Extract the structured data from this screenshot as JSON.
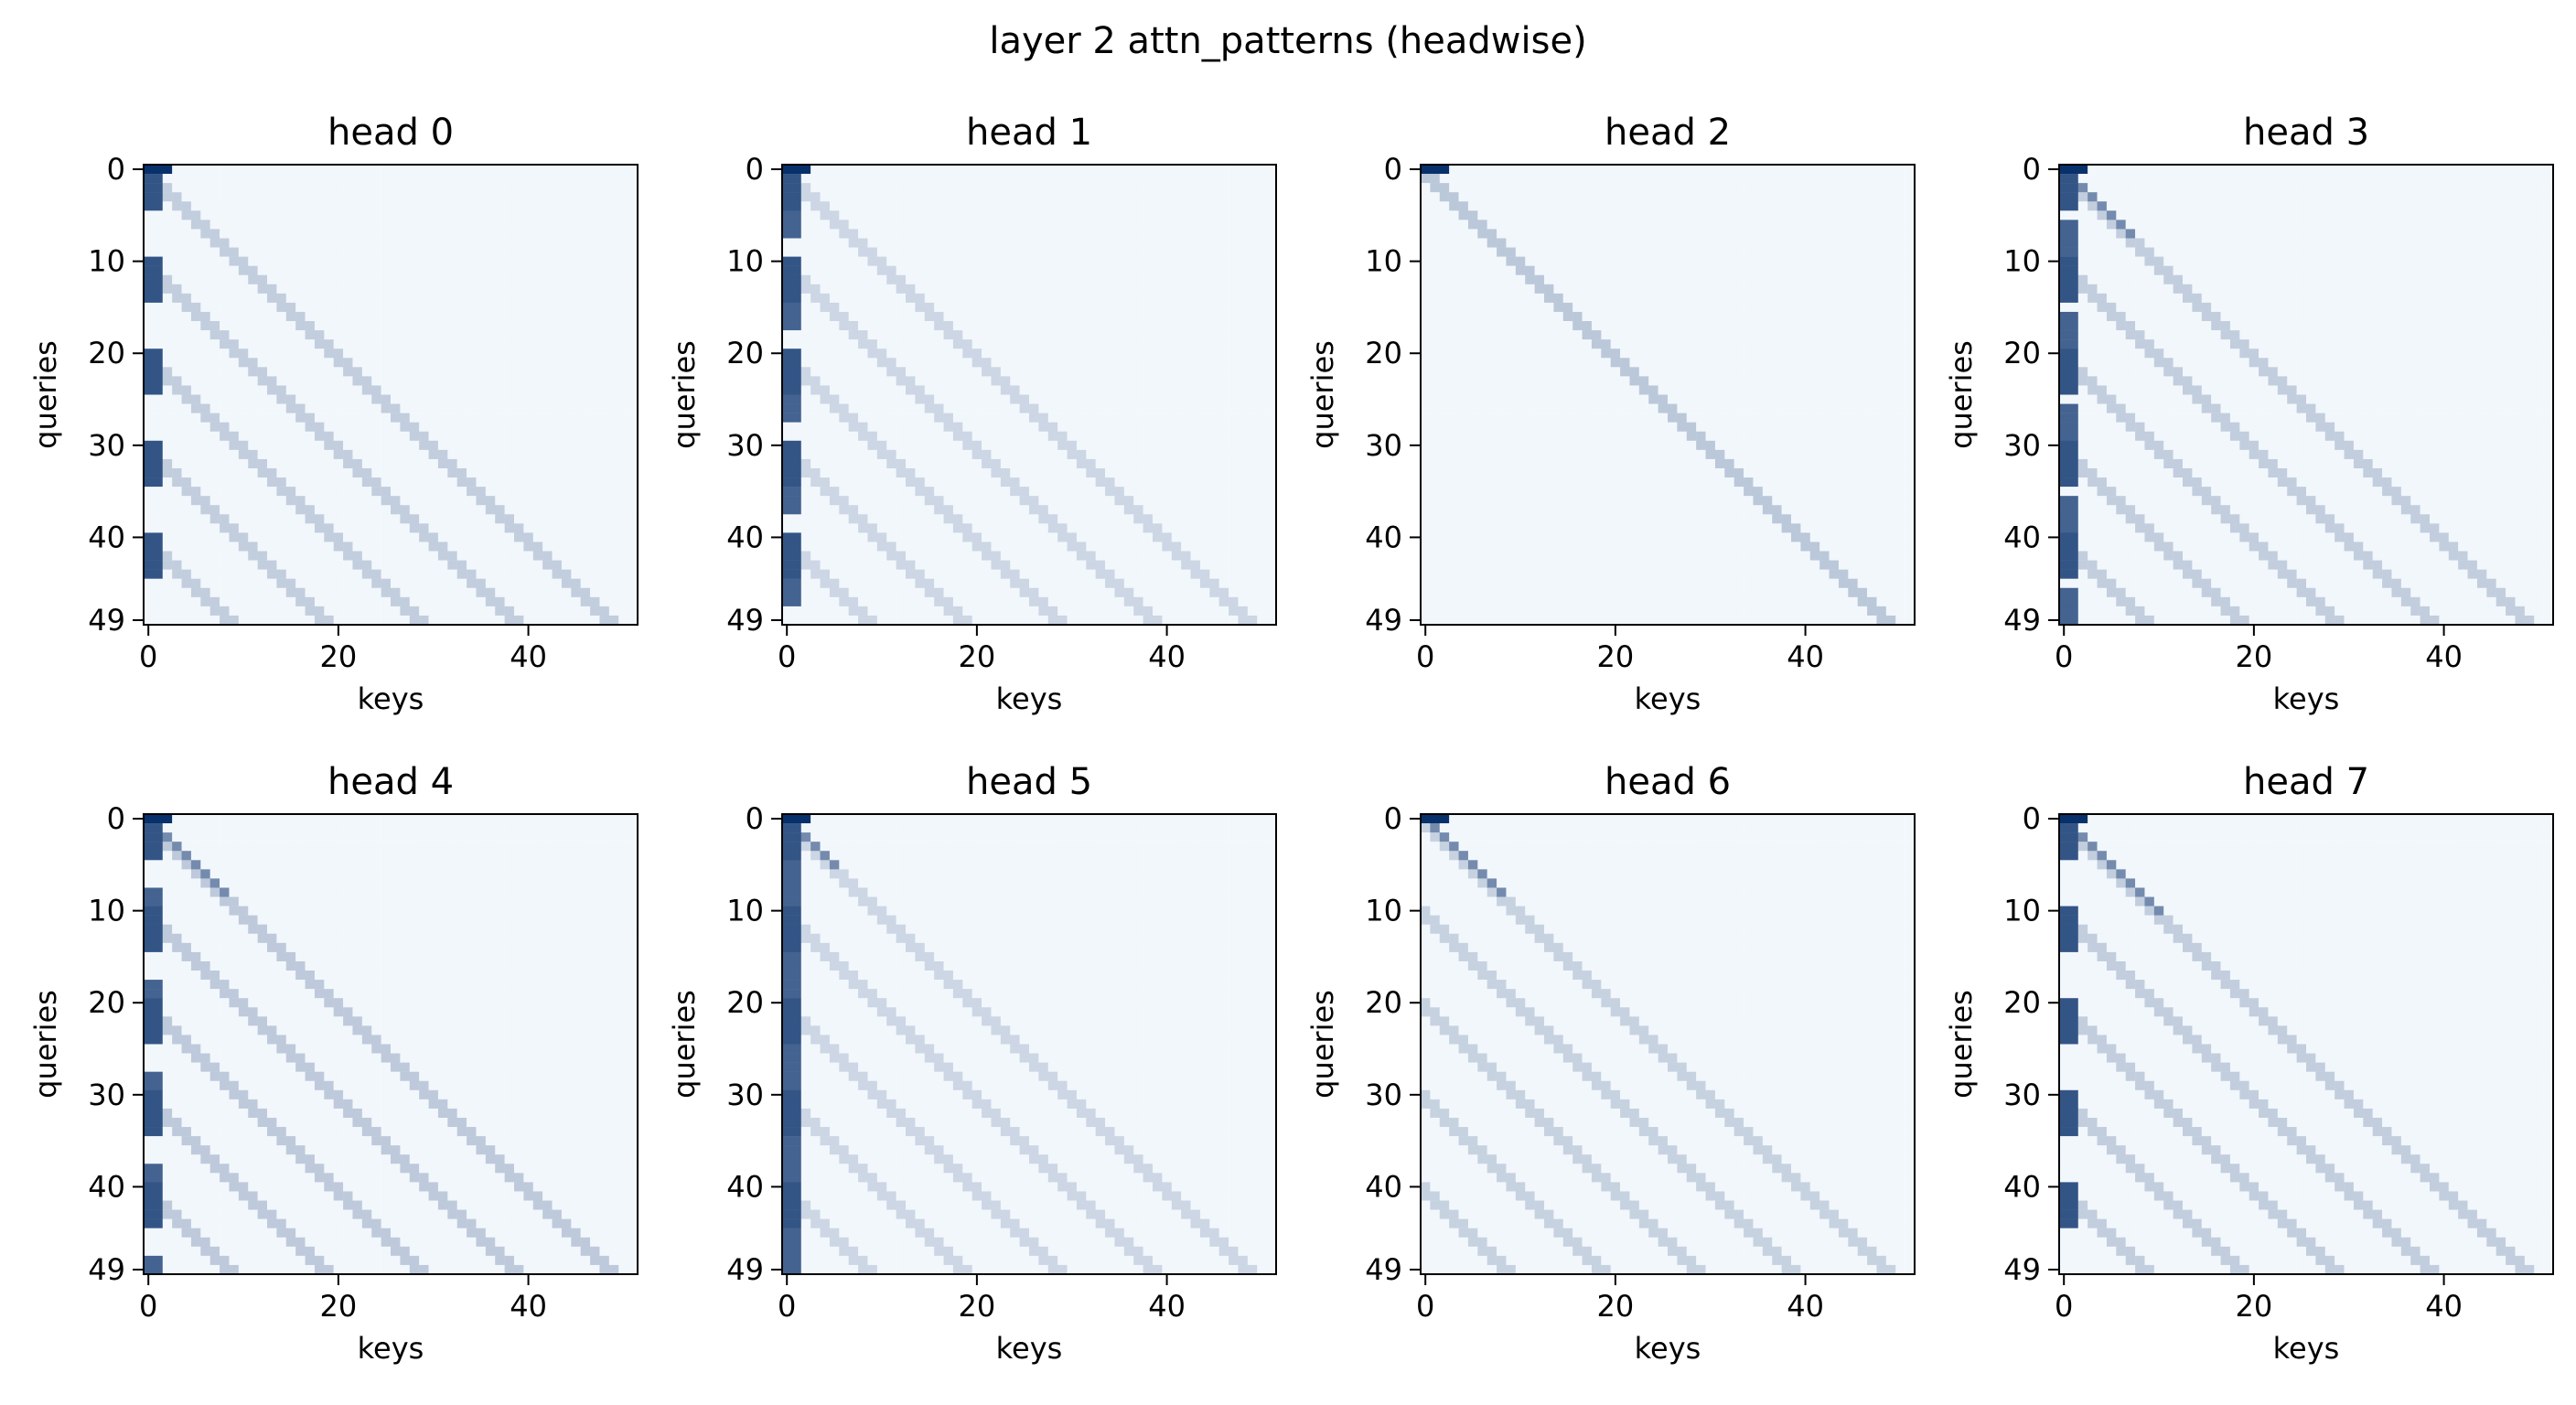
{
  "figure": {
    "title": "layer 2 attn_patterns (headwise)"
  },
  "colormap": {
    "name": "Blues",
    "light": "#f7fbff",
    "dark": "#08306b"
  },
  "chart_data": [
    {
      "type": "heatmap",
      "title": "head 0",
      "xlabel": "keys",
      "ylabel": "queries",
      "x_ticks": [
        0,
        20,
        40
      ],
      "y_ticks": [
        0,
        10,
        20,
        30,
        40,
        49
      ],
      "xlim": [
        -0.5,
        51.5
      ],
      "ylim": [
        49.5,
        -0.5
      ],
      "n_queries": 50,
      "n_keys": 52,
      "pattern": {
        "column_blocks": {
          "period": 10,
          "start": 0,
          "length": 5,
          "width": 2
        },
        "diag_offsets": [
          0,
          10,
          20,
          30,
          40
        ],
        "diag_strength": 0.22,
        "top_row_strength": 1.0
      }
    },
    {
      "type": "heatmap",
      "title": "head 1",
      "xlabel": "keys",
      "ylabel": "queries",
      "x_ticks": [
        0,
        20,
        40
      ],
      "y_ticks": [
        0,
        10,
        20,
        30,
        40,
        49
      ],
      "xlim": [
        -0.5,
        51.5
      ],
      "ylim": [
        49.5,
        -0.5
      ],
      "n_queries": 50,
      "n_keys": 52,
      "pattern": {
        "column_blocks": {
          "period": 10,
          "start": 2,
          "length": 6,
          "width": 2
        },
        "diag_offsets": [
          0,
          10,
          20,
          30,
          40
        ],
        "diag_strength": 0.18,
        "top_row_strength": 1.0
      }
    },
    {
      "type": "heatmap",
      "title": "head 2",
      "xlabel": "keys",
      "ylabel": "queries",
      "x_ticks": [
        0,
        20,
        40
      ],
      "y_ticks": [
        0,
        10,
        20,
        30,
        40,
        49
      ],
      "xlim": [
        -0.5,
        51.5
      ],
      "ylim": [
        49.5,
        -0.5
      ],
      "n_queries": 50,
      "n_keys": 52,
      "pattern": {
        "column_blocks": null,
        "diag_offsets": [
          0
        ],
        "diag_strength": 0.25,
        "top_row_strength": 1.0
      }
    },
    {
      "type": "heatmap",
      "title": "head 3",
      "xlabel": "keys",
      "ylabel": "queries",
      "x_ticks": [
        0,
        20,
        40
      ],
      "y_ticks": [
        0,
        10,
        20,
        30,
        40,
        49
      ],
      "xlim": [
        -0.5,
        51.5
      ],
      "ylim": [
        49.5,
        -0.5
      ],
      "n_queries": 50,
      "n_keys": 52,
      "pattern": {
        "column_blocks": {
          "period": 10,
          "start": 6,
          "length": 4,
          "width": 2
        },
        "diag_offsets": [
          0,
          10,
          20,
          30,
          40
        ],
        "diag_strength": 0.22,
        "top_row_strength": 1.0,
        "early_diag": 7
      }
    },
    {
      "type": "heatmap",
      "title": "head 4",
      "xlabel": "keys",
      "ylabel": "queries",
      "x_ticks": [
        0,
        20,
        40
      ],
      "y_ticks": [
        0,
        10,
        20,
        30,
        40,
        49
      ],
      "xlim": [
        -0.5,
        51.5
      ],
      "ylim": [
        49.5,
        -0.5
      ],
      "n_queries": 50,
      "n_keys": 52,
      "pattern": {
        "column_blocks": {
          "period": 10,
          "start": 8,
          "length": 4,
          "width": 2
        },
        "diag_offsets": [
          0,
          10,
          20,
          30,
          40
        ],
        "diag_strength": 0.24,
        "top_row_strength": 1.0,
        "early_diag": 8
      }
    },
    {
      "type": "heatmap",
      "title": "head 5",
      "xlabel": "keys",
      "ylabel": "queries",
      "x_ticks": [
        0,
        20,
        40
      ],
      "y_ticks": [
        0,
        10,
        20,
        30,
        40,
        49
      ],
      "xlim": [
        -0.5,
        51.5
      ],
      "ylim": [
        49.5,
        -0.5
      ],
      "n_queries": 50,
      "n_keys": 52,
      "pattern": {
        "column_blocks": {
          "period": 10,
          "start": 5,
          "length": 5,
          "width": 2
        },
        "diag_offsets": [
          0,
          10,
          20,
          30,
          40
        ],
        "diag_strength": 0.18,
        "top_row_strength": 1.0,
        "early_diag": 5
      }
    },
    {
      "type": "heatmap",
      "title": "head 6",
      "xlabel": "keys",
      "ylabel": "queries",
      "x_ticks": [
        0,
        20,
        40
      ],
      "y_ticks": [
        0,
        10,
        20,
        30,
        40,
        49
      ],
      "xlim": [
        -0.5,
        51.5
      ],
      "ylim": [
        49.5,
        -0.5
      ],
      "n_queries": 50,
      "n_keys": 52,
      "pattern": {
        "column_blocks": null,
        "diag_offsets": [
          0,
          10,
          20,
          30,
          40
        ],
        "diag_strength": 0.2,
        "top_row_strength": 1.0,
        "early_diag": 8
      }
    },
    {
      "type": "heatmap",
      "title": "head 7",
      "xlabel": "keys",
      "ylabel": "queries",
      "x_ticks": [
        0,
        20,
        40
      ],
      "y_ticks": [
        0,
        10,
        20,
        30,
        40,
        49
      ],
      "xlim": [
        -0.5,
        51.5
      ],
      "ylim": [
        49.5,
        -0.5
      ],
      "n_queries": 50,
      "n_keys": 52,
      "pattern": {
        "column_blocks": {
          "period": 10,
          "start": 0,
          "length": 4,
          "width": 2
        },
        "diag_offsets": [
          0,
          10,
          20,
          30,
          40
        ],
        "diag_strength": 0.22,
        "top_row_strength": 1.0,
        "early_diag": 10
      }
    }
  ]
}
